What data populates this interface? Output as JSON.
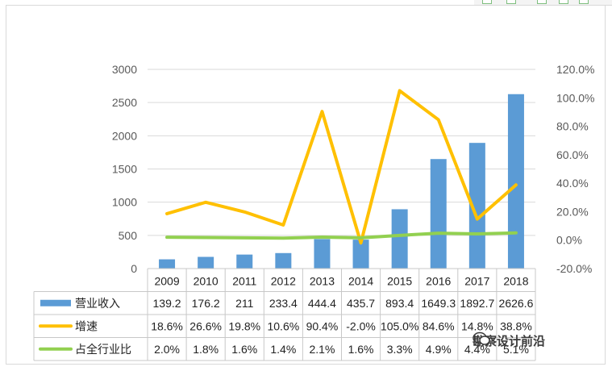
{
  "chart_data": {
    "type": "bar",
    "title": "",
    "categories": [
      "2009",
      "2010",
      "2011",
      "2012",
      "2013",
      "2014",
      "2015",
      "2016",
      "2017",
      "2018"
    ],
    "series": [
      {
        "name": "营业收入",
        "type": "bar",
        "axis": "left",
        "color": "#5b9bd5",
        "values": [
          139.2,
          176.2,
          211,
          233.4,
          444.4,
          435.7,
          893.4,
          1649.3,
          1892.7,
          2626.6
        ],
        "labels": [
          "139.2",
          "176.2",
          "211",
          "233.4",
          "444.4",
          "435.7",
          "893.4",
          "1649.3",
          "1892.7",
          "2626.6"
        ]
      },
      {
        "name": "增速",
        "type": "line",
        "axis": "right",
        "color": "#ffc000",
        "values": [
          18.6,
          26.6,
          19.8,
          10.6,
          90.4,
          -2.0,
          105.0,
          84.6,
          14.8,
          38.8
        ],
        "labels": [
          "18.6%",
          "26.6%",
          "19.8%",
          "10.6%",
          "90.4%",
          "-2.0%",
          "105.0%",
          "84.6%",
          "14.8%",
          "38.8%"
        ]
      },
      {
        "name": "占全行业比",
        "type": "line",
        "axis": "right",
        "color": "#92d050",
        "values": [
          2.0,
          1.8,
          1.6,
          1.4,
          2.1,
          1.6,
          3.3,
          4.9,
          4.4,
          5.1
        ],
        "labels": [
          "2.0%",
          "1.8%",
          "1.6%",
          "1.4%",
          "2.1%",
          "1.6%",
          "3.3%",
          "4.9%",
          "4.4%",
          "5.1%"
        ]
      }
    ],
    "y_left": {
      "range": [
        0,
        3000
      ],
      "ticks": [
        "3000",
        "2500",
        "2000",
        "1500",
        "1000",
        "500",
        "0"
      ]
    },
    "y_right": {
      "range": [
        -20,
        120
      ],
      "ticks": [
        "120.0%",
        "100.0%",
        "80.0%",
        "60.0%",
        "40.0%",
        "20.0%",
        "0.0%",
        "-20.0%"
      ]
    },
    "grid": true,
    "legend": "table-below"
  },
  "watermark": {
    "text": "勘察设计前沿"
  }
}
